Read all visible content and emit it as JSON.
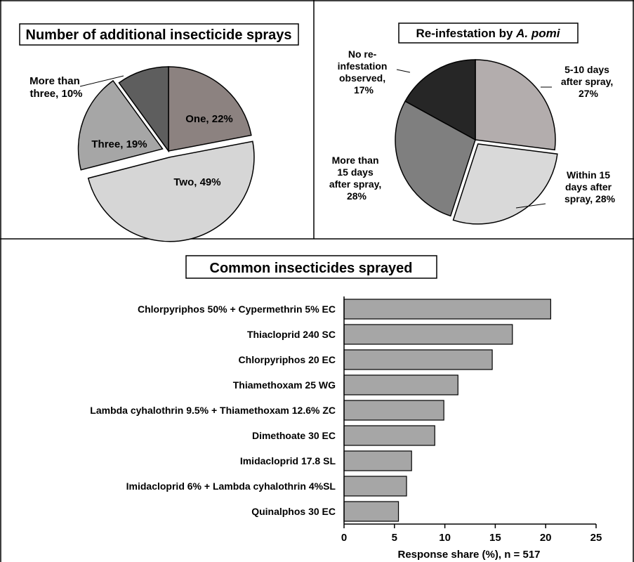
{
  "panels": [
    {
      "title": "Number of additional insecticide sprays",
      "chart_data": {
        "type": "pie",
        "slices": [
          {
            "label": "One, 22%",
            "value": 22,
            "color": "#8c8280",
            "exploded": false
          },
          {
            "label": "Two, 49%",
            "value": 49,
            "color": "#d6d6d6",
            "exploded": true
          },
          {
            "label": "Three, 19%",
            "value": 19,
            "color": "#a6a6a6",
            "exploded": true
          },
          {
            "label": "More than three, 10%",
            "value": 10,
            "color": "#5e5e5e",
            "exploded": false
          }
        ]
      }
    },
    {
      "title_prefix": "Re-infestation by ",
      "title_italic": "A. pomi",
      "chart_data": {
        "type": "pie",
        "slices": [
          {
            "label": "5-10 days after spray, 27%",
            "value": 27,
            "color": "#b3adad",
            "exploded": false
          },
          {
            "label": "Within 15 days after spray, 28%",
            "value": 28,
            "color": "#d9d9d9",
            "exploded": true
          },
          {
            "label": "More than 15 days after spray, 28%",
            "value": 28,
            "color": "#7f7f7f",
            "exploded": false
          },
          {
            "label": "No re-infestation observed, 17%",
            "value": 17,
            "color": "#262626",
            "exploded": false
          }
        ]
      }
    },
    {
      "title": "Common insecticides sprayed",
      "chart_data": {
        "type": "bar",
        "orientation": "horizontal",
        "categories": [
          "Chlorpyriphos 50% + Cypermethrin 5% EC",
          "Thiacloprid 240 SC",
          "Chlorpyriphos 20 EC",
          "Thiamethoxam 25 WG",
          "Lambda cyhalothrin 9.5% + Thiamethoxam 12.6% ZC",
          "Dimethoate 30 EC",
          "Imidacloprid 17.8 SL",
          "Imidacloprid 6% + Lambda cyhalothrin 4%SL",
          "Quinalphos 30 EC"
        ],
        "values": [
          20.5,
          16.7,
          14.7,
          11.3,
          9.9,
          9.0,
          6.7,
          6.2,
          5.4
        ],
        "xlim": [
          0,
          25
        ],
        "xticks": [
          0,
          5,
          10,
          15,
          20,
          25
        ],
        "xlabel": "Response share (%),  n = 517",
        "bar_color": "#a6a6a6",
        "grid": false
      }
    }
  ]
}
